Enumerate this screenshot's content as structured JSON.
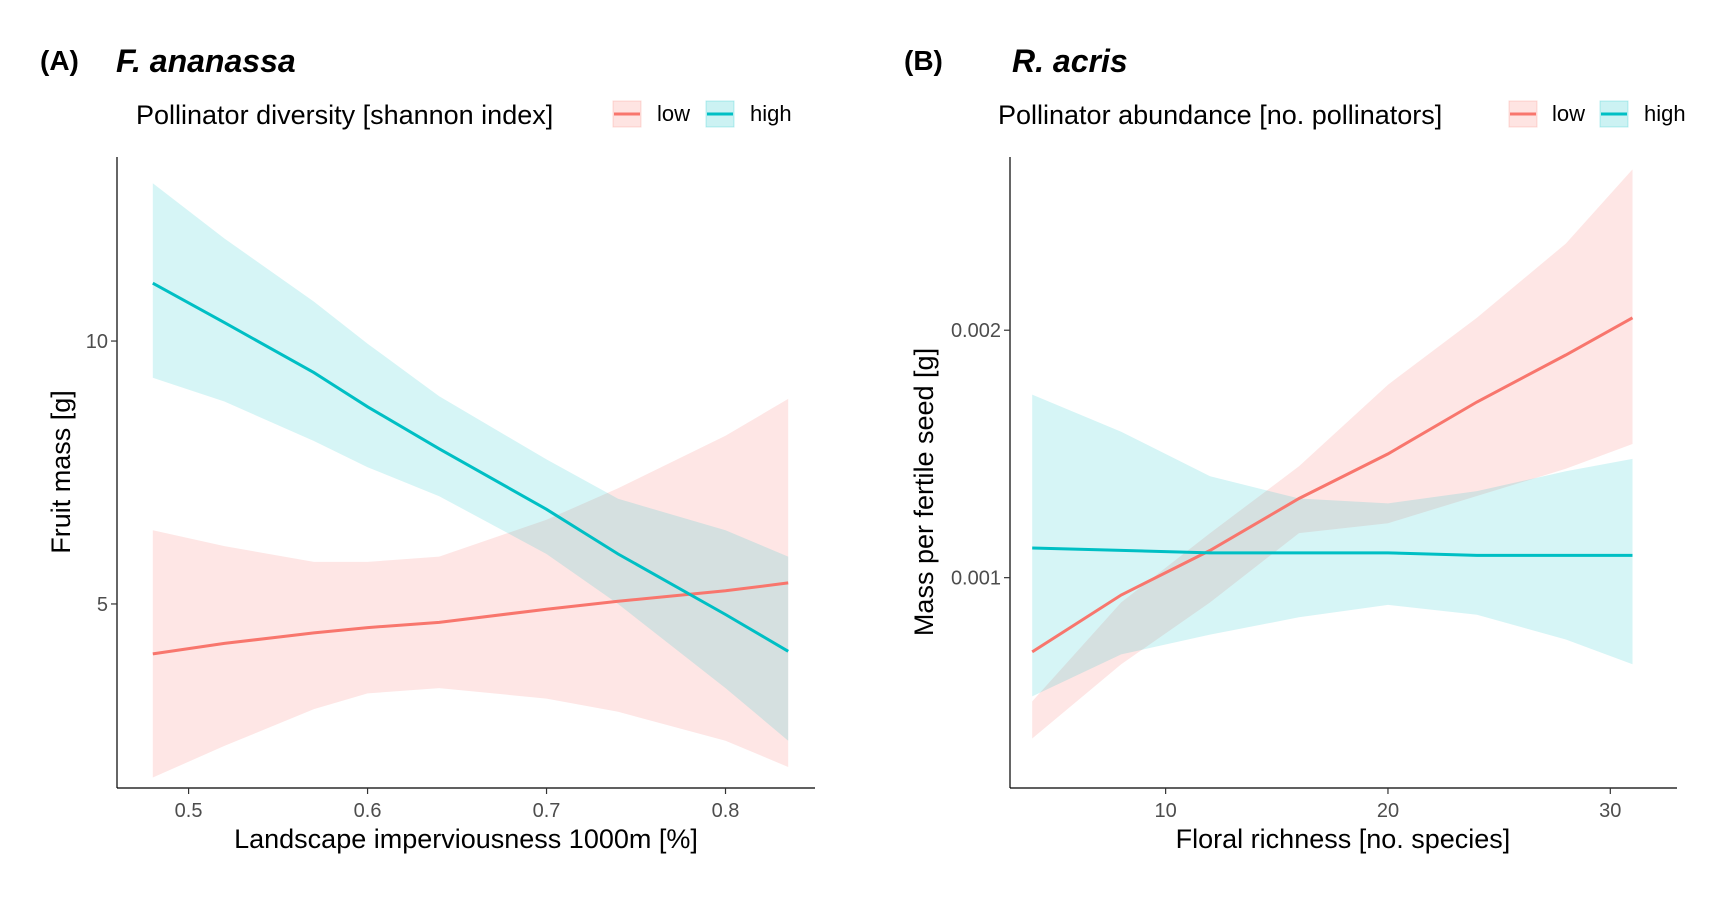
{
  "colors": {
    "low": "#F8766D",
    "high": "#00BFC4"
  },
  "chart_data": [
    {
      "type": "line",
      "panel_label": "(A)",
      "title": "F. ananassa",
      "legend_title": "Pollinator diversity [shannon index]",
      "legend_placement": "top",
      "xlabel": "Landscape imperviousness 1000m [%]",
      "ylabel": "Fruit mass [g]",
      "xlim": [
        0.46,
        0.85
      ],
      "ylim": [
        1.5,
        13.5
      ],
      "x_ticks": [
        0.5,
        0.6,
        0.7,
        0.8
      ],
      "x_tick_labels": [
        "0.5",
        "0.6",
        "0.7",
        "0.8"
      ],
      "y_ticks": [
        5,
        10
      ],
      "y_tick_labels": [
        "5",
        "10"
      ],
      "grid": false,
      "series": [
        {
          "name": "low",
          "color_key": "low",
          "x": [
            0.48,
            0.52,
            0.57,
            0.6,
            0.64,
            0.7,
            0.74,
            0.8,
            0.835
          ],
          "values": [
            4.05,
            4.25,
            4.45,
            4.55,
            4.65,
            4.9,
            5.05,
            5.25,
            5.4
          ],
          "lower": [
            1.7,
            2.3,
            3.0,
            3.3,
            3.4,
            3.2,
            2.95,
            2.4,
            1.9
          ],
          "upper": [
            6.4,
            6.1,
            5.8,
            5.8,
            5.9,
            6.6,
            7.2,
            8.2,
            8.9
          ]
        },
        {
          "name": "high",
          "color_key": "high",
          "x": [
            0.48,
            0.52,
            0.57,
            0.6,
            0.64,
            0.7,
            0.74,
            0.8,
            0.835
          ],
          "values": [
            11.1,
            10.35,
            9.4,
            8.75,
            7.95,
            6.8,
            5.95,
            4.8,
            4.1
          ],
          "lower": [
            9.3,
            8.85,
            8.1,
            7.6,
            7.05,
            5.95,
            5.0,
            3.4,
            2.4
          ],
          "upper": [
            13.0,
            11.95,
            10.75,
            9.95,
            8.95,
            7.75,
            7.0,
            6.4,
            5.9
          ]
        }
      ]
    },
    {
      "type": "line",
      "panel_label": "(B)",
      "title": "R. acris",
      "legend_title": "Pollinator abundance [no. pollinators]",
      "legend_placement": "top",
      "xlabel": "Floral richness [no. species]",
      "ylabel": "Mass per fertile seed [g]",
      "xlim": [
        3,
        33
      ],
      "ylim": [
        0.00015,
        0.0027
      ],
      "x_ticks": [
        10,
        20,
        30
      ],
      "x_tick_labels": [
        "10",
        "20",
        "30"
      ],
      "y_ticks": [
        0.001,
        0.002
      ],
      "y_tick_labels": [
        "0.001",
        "0.002"
      ],
      "grid": false,
      "series": [
        {
          "name": "low",
          "color_key": "low",
          "x": [
            4,
            8,
            12,
            16,
            20,
            24,
            28,
            31
          ],
          "values": [
            0.0007,
            0.00093,
            0.00111,
            0.00132,
            0.0015,
            0.00171,
            0.0019,
            0.00205
          ],
          "lower": [
            0.00035,
            0.00065,
            0.0009,
            0.00118,
            0.00122,
            0.00133,
            0.00144,
            0.00154
          ],
          "upper": [
            0.0005,
            0.0009,
            0.00118,
            0.00145,
            0.00178,
            0.00205,
            0.00235,
            0.00265
          ]
        },
        {
          "name": "high",
          "color_key": "high",
          "x": [
            4,
            8,
            12,
            16,
            20,
            24,
            28,
            31
          ],
          "values": [
            0.00112,
            0.00111,
            0.0011,
            0.0011,
            0.0011,
            0.00109,
            0.00109,
            0.00109
          ],
          "lower": [
            0.00052,
            0.00069,
            0.00077,
            0.00084,
            0.00089,
            0.00085,
            0.00075,
            0.00065
          ],
          "upper": [
            0.00174,
            0.00159,
            0.00141,
            0.00132,
            0.0013,
            0.00135,
            0.00143,
            0.00148
          ]
        }
      ]
    }
  ]
}
